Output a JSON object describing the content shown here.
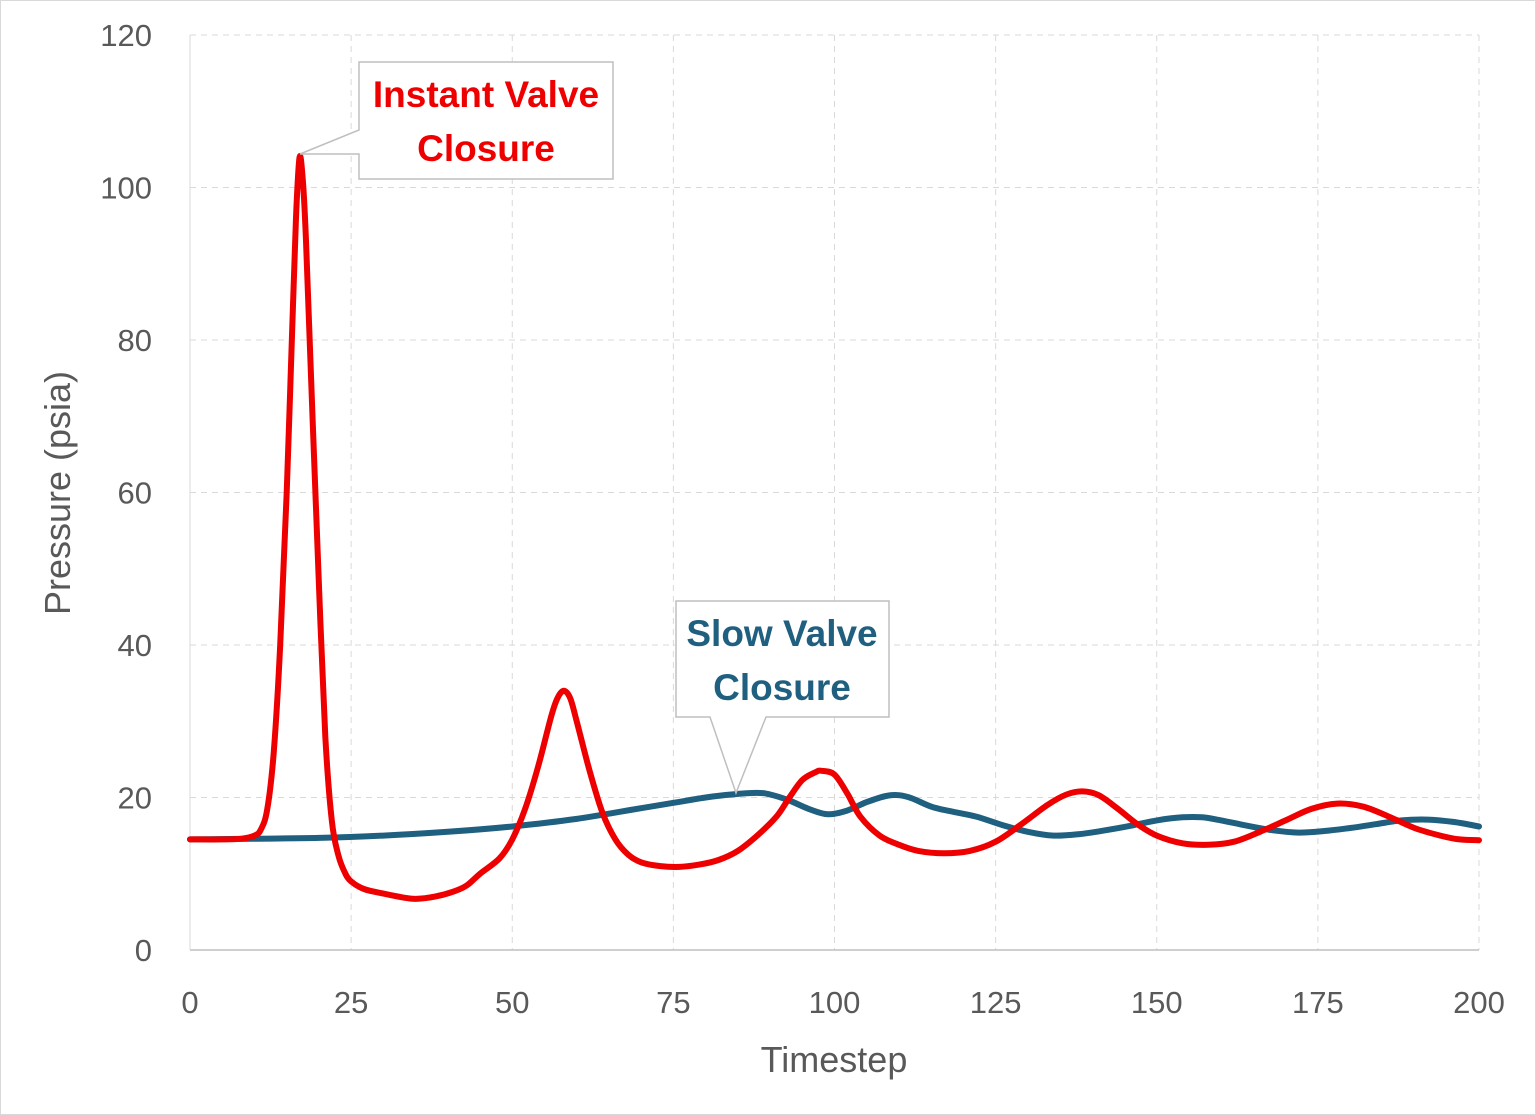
{
  "chart_data": {
    "type": "line",
    "xlabel": "Timestep",
    "ylabel": "Pressure (psia)",
    "xlim": [
      0,
      200
    ],
    "ylim": [
      0,
      120
    ],
    "x_ticks": [
      "0",
      "25",
      "50",
      "75",
      "100",
      "125",
      "150",
      "175",
      "200"
    ],
    "y_ticks": [
      "0",
      "20",
      "40",
      "60",
      "80",
      "100",
      "120"
    ],
    "grid": "dashed",
    "legend": "none",
    "series": [
      {
        "color": "#ee0000",
        "points": [
          [
            0,
            14.5
          ],
          [
            5,
            14.5
          ],
          [
            8,
            14.6
          ],
          [
            10,
            15.0
          ],
          [
            11,
            15.8
          ],
          [
            12,
            18.5
          ],
          [
            13,
            26.0
          ],
          [
            14,
            40.0
          ],
          [
            15,
            60.0
          ],
          [
            16,
            85.0
          ],
          [
            16.5,
            97.0
          ],
          [
            17,
            104.0
          ],
          [
            17.5,
            101.0
          ],
          [
            18,
            93.0
          ],
          [
            19,
            70.0
          ],
          [
            20,
            48.0
          ],
          [
            21,
            28.0
          ],
          [
            22,
            17.0
          ],
          [
            23,
            12.5
          ],
          [
            24,
            10.2
          ],
          [
            25,
            9.0
          ],
          [
            27,
            8.0
          ],
          [
            30,
            7.4
          ],
          [
            33,
            6.9
          ],
          [
            35,
            6.7
          ],
          [
            38,
            7.0
          ],
          [
            41,
            7.7
          ],
          [
            43,
            8.5
          ],
          [
            45,
            10.0
          ],
          [
            48,
            12.0
          ],
          [
            50,
            14.5
          ],
          [
            52,
            18.5
          ],
          [
            54,
            24.0
          ],
          [
            56,
            30.5
          ],
          [
            57,
            33.0
          ],
          [
            58,
            34.0
          ],
          [
            59,
            33.0
          ],
          [
            60,
            30.0
          ],
          [
            62,
            23.5
          ],
          [
            64,
            18.0
          ],
          [
            66,
            14.5
          ],
          [
            68,
            12.5
          ],
          [
            70,
            11.5
          ],
          [
            73,
            11.0
          ],
          [
            76,
            10.9
          ],
          [
            79,
            11.2
          ],
          [
            82,
            11.8
          ],
          [
            85,
            13.0
          ],
          [
            88,
            15.0
          ],
          [
            91,
            17.5
          ],
          [
            93,
            20.0
          ],
          [
            95,
            22.3
          ],
          [
            97,
            23.3
          ],
          [
            98,
            23.5
          ],
          [
            100,
            23.0
          ],
          [
            102,
            20.5
          ],
          [
            104,
            17.5
          ],
          [
            107,
            15.0
          ],
          [
            110,
            13.8
          ],
          [
            113,
            13.0
          ],
          [
            117,
            12.7
          ],
          [
            121,
            13.0
          ],
          [
            125,
            14.2
          ],
          [
            129,
            16.5
          ],
          [
            133,
            19.0
          ],
          [
            136,
            20.4
          ],
          [
            138.5,
            20.8
          ],
          [
            141,
            20.3
          ],
          [
            144,
            18.5
          ],
          [
            147,
            16.5
          ],
          [
            150,
            15.0
          ],
          [
            154,
            14.0
          ],
          [
            158,
            13.8
          ],
          [
            162,
            14.2
          ],
          [
            166,
            15.5
          ],
          [
            170,
            17.0
          ],
          [
            174,
            18.5
          ],
          [
            178,
            19.2
          ],
          [
            182,
            18.8
          ],
          [
            186,
            17.5
          ],
          [
            190,
            16.0
          ],
          [
            194,
            15.0
          ],
          [
            197,
            14.5
          ],
          [
            200,
            14.4
          ]
        ]
      },
      {
        "color": "#1f5f7f",
        "points": [
          [
            0,
            14.5
          ],
          [
            10,
            14.6
          ],
          [
            20,
            14.7
          ],
          [
            30,
            15.0
          ],
          [
            40,
            15.5
          ],
          [
            50,
            16.2
          ],
          [
            60,
            17.2
          ],
          [
            70,
            18.6
          ],
          [
            75,
            19.3
          ],
          [
            80,
            20.0
          ],
          [
            84,
            20.4
          ],
          [
            88,
            20.6
          ],
          [
            90,
            20.4
          ],
          [
            93,
            19.6
          ],
          [
            96,
            18.5
          ],
          [
            99,
            17.8
          ],
          [
            102,
            18.3
          ],
          [
            105,
            19.4
          ],
          [
            108,
            20.2
          ],
          [
            110,
            20.3
          ],
          [
            112,
            19.9
          ],
          [
            115,
            18.8
          ],
          [
            118,
            18.2
          ],
          [
            122,
            17.5
          ],
          [
            126,
            16.4
          ],
          [
            130,
            15.5
          ],
          [
            134,
            15.0
          ],
          [
            138,
            15.2
          ],
          [
            142,
            15.7
          ],
          [
            146,
            16.3
          ],
          [
            150,
            17.0
          ],
          [
            154,
            17.4
          ],
          [
            157,
            17.4
          ],
          [
            160,
            17.0
          ],
          [
            164,
            16.3
          ],
          [
            168,
            15.7
          ],
          [
            172,
            15.4
          ],
          [
            176,
            15.6
          ],
          [
            180,
            16.0
          ],
          [
            184,
            16.5
          ],
          [
            188,
            17.0
          ],
          [
            192,
            17.1
          ],
          [
            196,
            16.8
          ],
          [
            200,
            16.2
          ]
        ]
      }
    ],
    "annotations": [
      {
        "line1": "Instant Valve",
        "line2": "Closure",
        "color": "#ee0000",
        "points_to": [
          17,
          104
        ]
      },
      {
        "line1": "Slow Valve",
        "line2": "Closure",
        "color": "#1f5f7f",
        "points_to": [
          85,
          20.5
        ]
      }
    ]
  }
}
